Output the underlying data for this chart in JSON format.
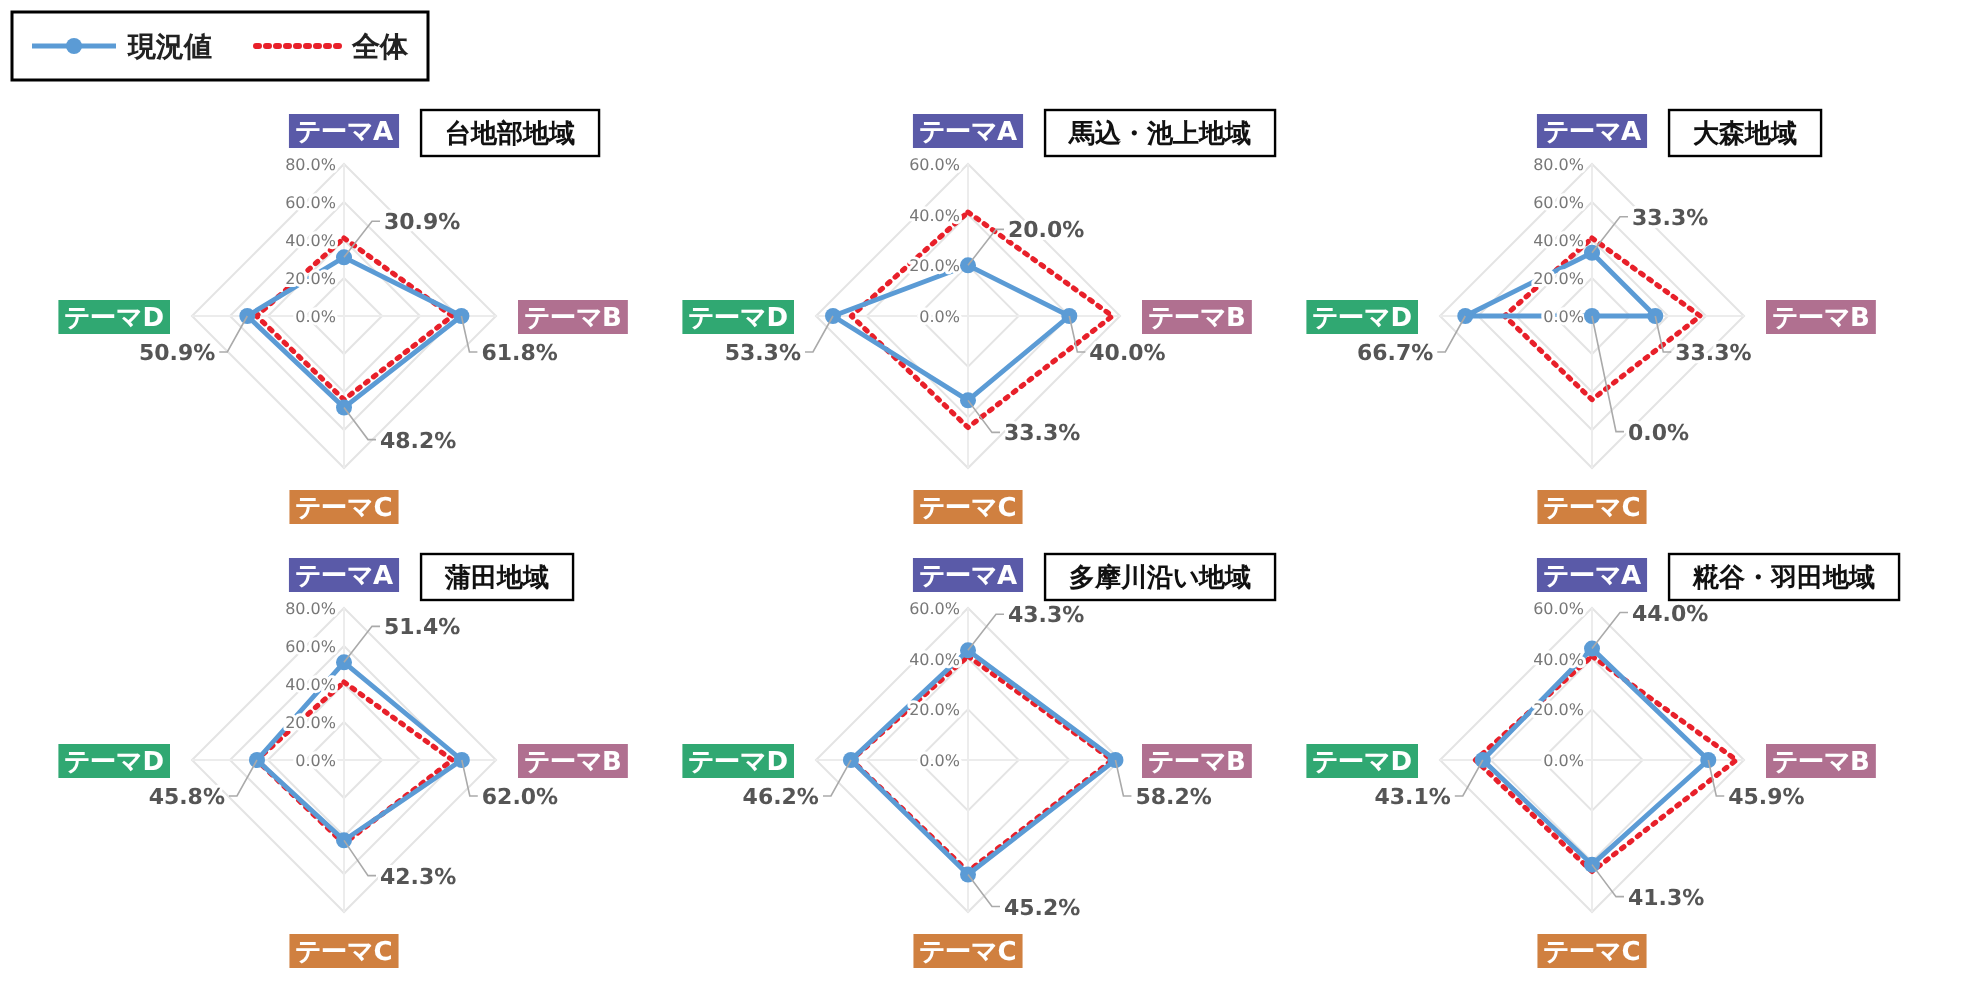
{
  "chart_data": [
    {
      "type": "radar",
      "title": "台地部地域",
      "categories": [
        "テーマA",
        "テーマB",
        "テーマC",
        "テーマD"
      ],
      "ylim": [
        0,
        80
      ],
      "yticks": [
        {
          "value": 0,
          "label": "0.0%"
        },
        {
          "value": 20,
          "label": "20.0%"
        },
        {
          "value": 40,
          "label": "40.0%"
        },
        {
          "value": 60,
          "label": "60.0%"
        },
        {
          "value": 80,
          "label": "80.0%"
        }
      ],
      "grid": true,
      "legend": "top left",
      "series": [
        {
          "name": "現況値",
          "color": "#5b9bd5",
          "marker": "circle",
          "line_style": "solid",
          "values": [
            30.9,
            61.8,
            48.2,
            50.9
          ],
          "value_labels": [
            "30.9%",
            "61.8%",
            "48.2%",
            "50.9%"
          ]
        },
        {
          "name": "全体",
          "color": "#e8202a",
          "marker": "none",
          "line_style": "dotted",
          "values": [
            41,
            57,
            44,
            46
          ]
        }
      ]
    },
    {
      "type": "radar",
      "title": "馬込・池上地域",
      "categories": [
        "テーマA",
        "テーマB",
        "テーマC",
        "テーマD"
      ],
      "ylim": [
        0,
        60
      ],
      "yticks": [
        {
          "value": 0,
          "label": "0.0%"
        },
        {
          "value": 20,
          "label": "20.0%"
        },
        {
          "value": 40,
          "label": "40.0%"
        },
        {
          "value": 60,
          "label": "60.0%"
        }
      ],
      "grid": true,
      "series": [
        {
          "color": "#5b9bd5",
          "marker": "circle",
          "line_style": "solid",
          "values": [
            20.0,
            40.0,
            33.3,
            53.3
          ],
          "value_labels": [
            "20.0%",
            "40.0%",
            "33.3%",
            "53.3%"
          ]
        },
        {
          "color": "#e8202a",
          "marker": "none",
          "line_style": "dotted",
          "values": [
            41,
            57,
            44,
            46
          ]
        }
      ]
    },
    {
      "type": "radar",
      "title": "大森地域",
      "categories": [
        "テーマA",
        "テーマB",
        "テーマC",
        "テーマD"
      ],
      "ylim": [
        0,
        80
      ],
      "yticks": [
        {
          "value": 0,
          "label": "0.0%"
        },
        {
          "value": 20,
          "label": "20.0%"
        },
        {
          "value": 40,
          "label": "40.0%"
        },
        {
          "value": 60,
          "label": "60.0%"
        },
        {
          "value": 80,
          "label": "80.0%"
        }
      ],
      "grid": true,
      "series": [
        {
          "color": "#5b9bd5",
          "marker": "circle",
          "line_style": "solid",
          "values": [
            33.3,
            33.3,
            0.0,
            66.7
          ],
          "value_labels": [
            "33.3%",
            "33.3%",
            "0.0%",
            "66.7%"
          ]
        },
        {
          "color": "#e8202a",
          "marker": "none",
          "line_style": "dotted",
          "values": [
            41,
            57,
            44,
            46
          ]
        }
      ]
    },
    {
      "type": "radar",
      "title": "蒲田地域",
      "categories": [
        "テーマA",
        "テーマB",
        "テーマC",
        "テーマD"
      ],
      "ylim": [
        0,
        80
      ],
      "yticks": [
        {
          "value": 0,
          "label": "0.0%"
        },
        {
          "value": 20,
          "label": "20.0%"
        },
        {
          "value": 40,
          "label": "40.0%"
        },
        {
          "value": 60,
          "label": "60.0%"
        },
        {
          "value": 80,
          "label": "80.0%"
        }
      ],
      "grid": true,
      "series": [
        {
          "color": "#5b9bd5",
          "marker": "circle",
          "line_style": "solid",
          "values": [
            51.4,
            62.0,
            42.3,
            45.8
          ],
          "value_labels": [
            "51.4%",
            "62.0%",
            "42.3%",
            "45.8%"
          ]
        },
        {
          "color": "#e8202a",
          "marker": "none",
          "line_style": "dotted",
          "values": [
            41,
            57,
            44,
            46
          ]
        }
      ]
    },
    {
      "type": "radar",
      "title": "多摩川沿い地域",
      "categories": [
        "テーマA",
        "テーマB",
        "テーマC",
        "テーマD"
      ],
      "ylim": [
        0,
        60
      ],
      "yticks": [
        {
          "value": 0,
          "label": "0.0%"
        },
        {
          "value": 20,
          "label": "20.0%"
        },
        {
          "value": 40,
          "label": "40.0%"
        },
        {
          "value": 60,
          "label": "60.0%"
        }
      ],
      "grid": true,
      "series": [
        {
          "color": "#5b9bd5",
          "marker": "circle",
          "line_style": "solid",
          "values": [
            43.3,
            58.2,
            45.2,
            46.2
          ],
          "value_labels": [
            "43.3%",
            "58.2%",
            "45.2%",
            "46.2%"
          ]
        },
        {
          "color": "#e8202a",
          "marker": "none",
          "line_style": "dotted",
          "values": [
            41,
            57,
            44,
            46
          ]
        }
      ]
    },
    {
      "type": "radar",
      "title": "糀谷・羽田地域",
      "categories": [
        "テーマA",
        "テーマB",
        "テーマC",
        "テーマD"
      ],
      "ylim": [
        0,
        60
      ],
      "yticks": [
        {
          "value": 0,
          "label": "0.0%"
        },
        {
          "value": 20,
          "label": "20.0%"
        },
        {
          "value": 40,
          "label": "40.0%"
        },
        {
          "value": 60,
          "label": "60.0%"
        }
      ],
      "grid": true,
      "series": [
        {
          "color": "#5b9bd5",
          "marker": "circle",
          "line_style": "solid",
          "values": [
            44.0,
            45.9,
            41.3,
            43.1
          ],
          "value_labels": [
            "44.0%",
            "45.9%",
            "41.3%",
            "43.1%"
          ]
        },
        {
          "color": "#e8202a",
          "marker": "none",
          "line_style": "dotted",
          "values": [
            41,
            57,
            44,
            46
          ]
        }
      ]
    }
  ]
}
